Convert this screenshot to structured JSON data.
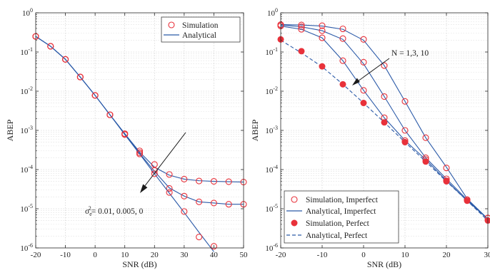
{
  "chart_data": [
    {
      "type": "line",
      "title": "",
      "xlabel": "SNR (dB)",
      "ylabel": "ABEP",
      "xlim": [
        -20,
        50
      ],
      "ylim": [
        1e-06,
        1
      ],
      "yscale": "log",
      "grid": true,
      "legend_position": "top-right",
      "x_ticks": [
        "-20",
        "-10",
        "0",
        "10",
        "20",
        "30",
        "40",
        "50"
      ],
      "x_tick_values": [
        -20,
        -10,
        0,
        10,
        20,
        30,
        40,
        50
      ],
      "y_ticks": [
        {
          "base": "10",
          "exp": "-6"
        },
        {
          "base": "10",
          "exp": "-5"
        },
        {
          "base": "10",
          "exp": "-4"
        },
        {
          "base": "10",
          "exp": "-3"
        },
        {
          "base": "10",
          "exp": "-2"
        },
        {
          "base": "10",
          "exp": "-1"
        },
        {
          "base": "10",
          "exp": "0"
        }
      ],
      "legend": [
        {
          "label": "Simulation",
          "marker": "open-circle"
        },
        {
          "label": "Analytical",
          "marker": "solid-line"
        }
      ],
      "annotation": {
        "sigma": "σ",
        "sub": "e",
        "sup": "2",
        "text": "= 0.01, 0.005, 0"
      },
      "x": [
        -20,
        -15,
        -10,
        -5,
        0,
        5,
        10,
        15,
        20,
        25,
        30,
        35,
        40,
        45,
        50
      ],
      "series": [
        {
          "name": "σe² = 0.01",
          "simulation": [
            0.25,
            0.14,
            0.065,
            0.023,
            0.0078,
            0.0025,
            0.00082,
            0.0003,
            0.000135,
            7.5e-05,
            5.7e-05,
            5.1e-05,
            5e-05,
            4.9e-05,
            4.8e-05
          ],
          "analytical": [
            0.25,
            0.14,
            0.065,
            0.023,
            0.0078,
            0.0025,
            0.00082,
            0.00028,
            0.000115,
            7.2e-05,
            5.7e-05,
            5.2e-05,
            5e-05,
            4.9e-05,
            4.8e-05
          ]
        },
        {
          "name": "σe² = 0.005",
          "simulation": [
            0.25,
            0.14,
            0.065,
            0.023,
            0.0078,
            0.0025,
            0.00082,
            0.00027,
            9.5e-05,
            3.3e-05,
            2.1e-05,
            1.5e-05,
            1.4e-05,
            1.3e-05,
            1.3e-05
          ],
          "analytical": [
            0.25,
            0.14,
            0.065,
            0.023,
            0.0078,
            0.0025,
            0.00082,
            0.00026,
            9e-05,
            3.4e-05,
            2.1e-05,
            1.5e-05,
            1.4e-05,
            1.3e-05,
            1.3e-05
          ]
        },
        {
          "name": "σe² = 0",
          "simulation": [
            0.25,
            0.14,
            0.065,
            0.023,
            0.0078,
            0.0025,
            0.00078,
            0.00025,
            7.8e-05,
            2.6e-05,
            8.5e-06,
            1.9e-06,
            1.1e-06
          ],
          "analytical": [
            0.25,
            0.14,
            0.065,
            0.023,
            0.0078,
            0.0025,
            0.00078,
            0.00025,
            7.8e-05,
            2.5e-05,
            8e-06,
            2.5e-06,
            8e-07
          ]
        }
      ]
    },
    {
      "type": "line",
      "title": "",
      "xlabel": "SNR (dB)",
      "ylabel": "ABEP",
      "xlim": [
        -20,
        30
      ],
      "ylim": [
        1e-06,
        1
      ],
      "yscale": "log",
      "grid": true,
      "legend_position": "bottom-left",
      "x_ticks": [
        "-20",
        "-10",
        "0",
        "10",
        "20",
        "30"
      ],
      "x_tick_values": [
        -20,
        -10,
        0,
        10,
        20,
        30
      ],
      "y_ticks": [
        {
          "base": "10",
          "exp": "-6"
        },
        {
          "base": "10",
          "exp": "-5"
        },
        {
          "base": "10",
          "exp": "-4"
        },
        {
          "base": "10",
          "exp": "-3"
        },
        {
          "base": "10",
          "exp": "-2"
        },
        {
          "base": "10",
          "exp": "-1"
        },
        {
          "base": "10",
          "exp": "0"
        }
      ],
      "legend": [
        {
          "label": "Simulation, Imperfect",
          "marker": "open-circle"
        },
        {
          "label": "Analytical, Imperfect",
          "marker": "solid-line"
        },
        {
          "label": "Simulation, Perfect",
          "marker": "filled-circle"
        },
        {
          "label": "Analytical, Perfect",
          "marker": "dashed-line"
        }
      ],
      "annotation": {
        "text": "N = 1,3, 10"
      },
      "x": [
        -20,
        -15,
        -10,
        -5,
        0,
        5,
        10,
        15,
        20,
        25,
        30
      ],
      "series": [
        {
          "name": "N = 1, Imperfect",
          "simulation": [
            0.5,
            0.49,
            0.47,
            0.39,
            0.21,
            0.045,
            0.0055,
            0.00065,
            0.00011,
            1.7e-05,
            5.8e-06
          ],
          "analytical": [
            0.5,
            0.49,
            0.46,
            0.38,
            0.2,
            0.045,
            0.0055,
            0.00065,
            0.000115,
            1.8e-05,
            5.5e-06
          ]
        },
        {
          "name": "N = 3, Imperfect",
          "simulation": [
            0.49,
            0.44,
            0.35,
            0.22,
            0.055,
            0.0073,
            0.001,
            0.0002,
            5.8e-05,
            1.7e-05,
            5.8e-06
          ],
          "analytical": [
            0.49,
            0.44,
            0.35,
            0.21,
            0.05,
            0.0073,
            0.001,
            0.0002,
            5.8e-05,
            1.7e-05,
            5.5e-06
          ]
        },
        {
          "name": "N = 10, Imperfect",
          "simulation": [
            0.46,
            0.38,
            0.23,
            0.06,
            0.0105,
            0.0021,
            0.00055,
            0.00018,
            5.2e-05,
            1.7e-05,
            5.8e-06
          ],
          "analytical": [
            0.46,
            0.38,
            0.23,
            0.06,
            0.0105,
            0.0021,
            0.00055,
            0.00018,
            5.2e-05,
            1.6e-05,
            5.5e-06
          ]
        },
        {
          "name": "Perfect",
          "simulation": [
            0.21,
            0.105,
            0.043,
            0.015,
            0.005,
            0.0016,
            0.0005,
            0.00016,
            5e-05,
            1.6e-05,
            5e-06
          ],
          "analytical": [
            0.2,
            0.095,
            0.042,
            0.015,
            0.005,
            0.0016,
            0.0005,
            0.00016,
            5e-05,
            1.6e-05,
            5e-06
          ]
        }
      ]
    }
  ]
}
